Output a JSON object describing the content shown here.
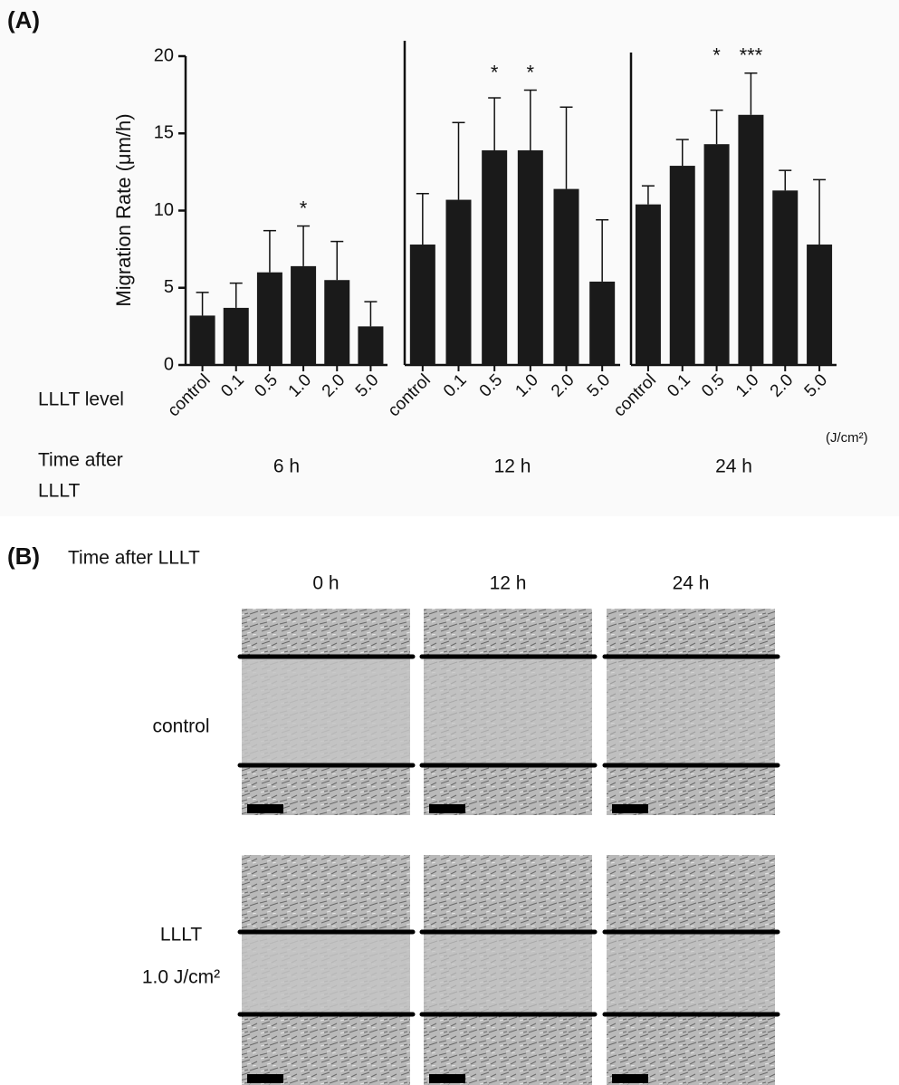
{
  "panel_a": {
    "label": "(A)",
    "x_label": "LLLT level",
    "time_label": [
      "Time after",
      "LLLT"
    ],
    "unit": "(J/cm²)",
    "y_label": "Migration Rate (μm/h)"
  },
  "chart_data": [
    {
      "type": "bar",
      "title": "6 h",
      "categories": [
        "control",
        "0.1",
        "0.5",
        "1.0",
        "2.0",
        "5.0"
      ],
      "values": [
        3.2,
        3.7,
        6.0,
        6.4,
        5.5,
        2.5
      ],
      "errors": [
        1.5,
        1.6,
        2.7,
        2.6,
        2.5,
        1.6
      ],
      "significance": [
        null,
        null,
        null,
        "*",
        null,
        null
      ],
      "color": "#1a1a1a",
      "ylim": [
        0,
        20
      ],
      "yticks": [
        0,
        5,
        10,
        15,
        20
      ]
    },
    {
      "type": "bar",
      "title": "12 h",
      "categories": [
        "control",
        "0.1",
        "0.5",
        "1.0",
        "2.0",
        "5.0"
      ],
      "values": [
        7.8,
        10.7,
        13.9,
        13.9,
        11.4,
        5.4
      ],
      "errors": [
        3.3,
        5.0,
        3.4,
        3.9,
        5.3,
        4.0
      ],
      "significance": [
        null,
        null,
        "*",
        "*",
        null,
        null
      ],
      "color": "#1a1a1a",
      "ylim": [
        0,
        20
      ]
    },
    {
      "type": "bar",
      "title": "24 h",
      "categories": [
        "control",
        "0.1",
        "0.5",
        "1.0",
        "2.0",
        "5.0"
      ],
      "values": [
        10.4,
        12.9,
        14.3,
        16.2,
        11.3,
        7.8
      ],
      "errors": [
        1.2,
        1.7,
        2.2,
        2.7,
        1.3,
        4.2
      ],
      "significance": [
        null,
        null,
        "*",
        "***",
        null,
        null
      ],
      "color": "#1a1a1a",
      "ylim": [
        0,
        20
      ]
    }
  ],
  "panel_b": {
    "label": "(B)",
    "time_label": "Time after LLLT",
    "columns": [
      "0 h",
      "12 h",
      "24 h"
    ],
    "rows": [
      [
        "control"
      ],
      [
        "LLLT",
        "1.0 J/cm²"
      ]
    ]
  }
}
